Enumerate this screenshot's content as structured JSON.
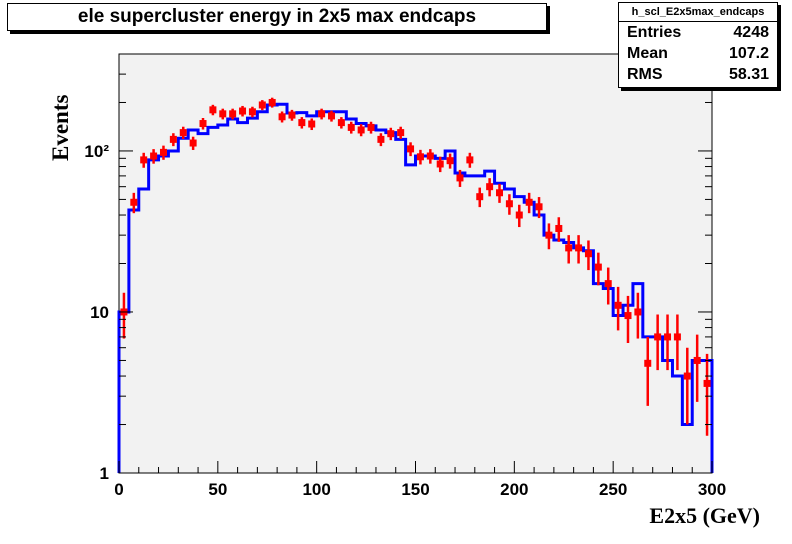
{
  "title": "ele supercluster energy in 2x5 max endcaps",
  "stats": {
    "name": "h_scl_E2x5max_endcaps",
    "rows": [
      {
        "label": "Entries",
        "value": "4248"
      },
      {
        "label": "Mean",
        "value": "107.2"
      },
      {
        "label": "RMS",
        "value": "58.31"
      }
    ]
  },
  "colors": {
    "histogram": "#0000ff",
    "points": "#ff0000",
    "frame_bg": "#f2f2f2"
  },
  "chart_data": {
    "type": "line",
    "title": "ele supercluster energy in 2x5 max endcaps",
    "xlabel": "E2x5 (GeV)",
    "ylabel": "Events",
    "xlim": [
      0,
      300
    ],
    "ylim": [
      1,
      400
    ],
    "yscale": "log",
    "grid": false,
    "x_ticks": [
      "0",
      "50",
      "100",
      "150",
      "200",
      "250",
      "300"
    ],
    "y_ticks": [
      "1",
      "10",
      "10²"
    ],
    "bin_width": 5,
    "series": [
      {
        "style": "step",
        "x": [
          2.5,
          7.5,
          12.5,
          17.5,
          22.5,
          27.5,
          32.5,
          37.5,
          42.5,
          47.5,
          52.5,
          57.5,
          62.5,
          67.5,
          72.5,
          77.5,
          82.5,
          87.5,
          92.5,
          97.5,
          102.5,
          107.5,
          112.5,
          117.5,
          122.5,
          127.5,
          132.5,
          137.5,
          142.5,
          147.5,
          152.5,
          157.5,
          162.5,
          167.5,
          172.5,
          177.5,
          182.5,
          187.5,
          192.5,
          197.5,
          202.5,
          207.5,
          212.5,
          217.5,
          222.5,
          227.5,
          232.5,
          237.5,
          242.5,
          247.5,
          252.5,
          257.5,
          262.5,
          267.5,
          272.5,
          277.5,
          282.5,
          287.5,
          292.5,
          297.5
        ],
        "values": [
          10,
          43,
          58,
          88,
          93,
          100,
          120,
          135,
          128,
          140,
          145,
          158,
          150,
          160,
          175,
          193,
          195,
          172,
          173,
          165,
          175,
          175,
          175,
          158,
          148,
          143,
          135,
          130,
          118,
          82,
          93,
          93,
          90,
          100,
          73,
          70,
          70,
          75,
          63,
          58,
          52,
          48,
          40,
          30,
          28,
          27,
          25,
          24,
          15,
          14,
          9.5,
          11,
          15,
          7,
          7,
          5,
          4,
          2,
          5,
          5
        ]
      },
      {
        "style": "errorbar",
        "x": [
          2.5,
          7.5,
          12.5,
          17.5,
          22.5,
          27.5,
          32.5,
          37.5,
          42.5,
          47.5,
          52.5,
          57.5,
          62.5,
          67.5,
          72.5,
          77.5,
          82.5,
          87.5,
          92.5,
          97.5,
          102.5,
          107.5,
          112.5,
          117.5,
          122.5,
          127.5,
          132.5,
          137.5,
          142.5,
          147.5,
          152.5,
          157.5,
          162.5,
          167.5,
          172.5,
          177.5,
          182.5,
          187.5,
          192.5,
          197.5,
          202.5,
          207.5,
          212.5,
          217.5,
          222.5,
          227.5,
          232.5,
          237.5,
          242.5,
          247.5,
          252.5,
          257.5,
          262.5,
          267.5,
          272.5,
          277.5,
          282.5,
          287.5,
          292.5,
          297.5
        ],
        "values": [
          10,
          48,
          88,
          93,
          98,
          118,
          130,
          112,
          148,
          180,
          170,
          170,
          177,
          175,
          193,
          200,
          163,
          167,
          150,
          147,
          170,
          165,
          150,
          140,
          135,
          140,
          118,
          128,
          130,
          103,
          92,
          93,
          83,
          87,
          68,
          88,
          52,
          60,
          55,
          47,
          40,
          48,
          45,
          30,
          33,
          25,
          25,
          23,
          19,
          15,
          11,
          9.5,
          10,
          4.8,
          7,
          7,
          7,
          4,
          5,
          3.6
        ]
      }
    ]
  }
}
